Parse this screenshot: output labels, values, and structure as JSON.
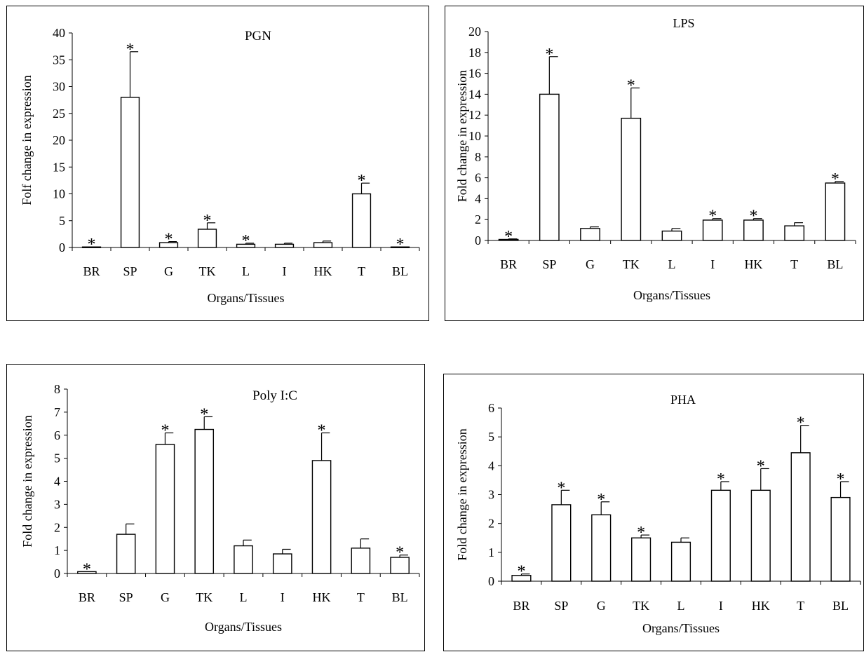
{
  "chart_data": [
    {
      "type": "bar",
      "title": "PGN",
      "xlabel": "Organs/Tissues",
      "ylabel": "Folf change in expression",
      "ylim": [
        0,
        40
      ],
      "yticks": [
        0,
        5,
        10,
        15,
        20,
        25,
        30,
        35,
        40
      ],
      "categories": [
        "BR",
        "SP",
        "G",
        "TK",
        "L",
        "I",
        "HK",
        "T",
        "BL"
      ],
      "values": [
        0.1,
        28,
        0.9,
        3.4,
        0.6,
        0.6,
        0.9,
        10,
        0.1
      ],
      "errors": [
        0,
        8.5,
        0.2,
        1.2,
        0.2,
        0.2,
        0.3,
        2.0,
        0
      ],
      "significant": [
        true,
        true,
        true,
        true,
        true,
        false,
        false,
        true,
        true
      ],
      "marker": "*",
      "legend": "none",
      "grid": false
    },
    {
      "type": "bar",
      "title": "LPS",
      "xlabel": "Organs/Tissues",
      "ylabel": "Fold change in expression",
      "ylim": [
        0,
        20
      ],
      "yticks": [
        0,
        2,
        4,
        6,
        8,
        10,
        12,
        14,
        16,
        18,
        20
      ],
      "categories": [
        "BR",
        "SP",
        "G",
        "TK",
        "L",
        "I",
        "HK",
        "T",
        "BL"
      ],
      "values": [
        0.1,
        14,
        1.15,
        11.7,
        0.9,
        1.95,
        1.95,
        1.4,
        5.5
      ],
      "errors": [
        0.05,
        3.6,
        0.15,
        2.9,
        0.25,
        0.15,
        0.15,
        0.3,
        0.15
      ],
      "significant": [
        true,
        true,
        false,
        true,
        false,
        true,
        true,
        false,
        true
      ],
      "marker": "*",
      "legend": "none",
      "grid": false
    },
    {
      "type": "bar",
      "title": "Poly I:C",
      "xlabel": "Organs/Tissues",
      "ylabel": "Fold change in expression",
      "ylim": [
        0,
        8
      ],
      "yticks": [
        0,
        1,
        2,
        3,
        4,
        5,
        6,
        7,
        8
      ],
      "categories": [
        "BR",
        "SP",
        "G",
        "TK",
        "L",
        "I",
        "HK",
        "T",
        "BL"
      ],
      "values": [
        0.08,
        1.7,
        5.6,
        6.25,
        1.2,
        0.85,
        4.9,
        1.1,
        0.7
      ],
      "errors": [
        0,
        0.45,
        0.5,
        0.55,
        0.25,
        0.2,
        1.2,
        0.4,
        0.1
      ],
      "significant": [
        true,
        false,
        true,
        true,
        false,
        false,
        true,
        false,
        true
      ],
      "marker": "*",
      "legend": "none",
      "grid": false
    },
    {
      "type": "bar",
      "title": "PHA",
      "xlabel": "Organs/Tissues",
      "ylabel": "Fold change in expression",
      "ylim": [
        0,
        6
      ],
      "yticks": [
        0,
        1,
        2,
        3,
        4,
        5,
        6
      ],
      "categories": [
        "BR",
        "SP",
        "G",
        "TK",
        "L",
        "I",
        "HK",
        "T",
        "BL"
      ],
      "values": [
        0.2,
        2.65,
        2.3,
        1.5,
        1.35,
        3.15,
        3.15,
        4.45,
        2.9
      ],
      "errors": [
        0.05,
        0.5,
        0.45,
        0.1,
        0.15,
        0.3,
        0.75,
        0.95,
        0.55
      ],
      "significant": [
        true,
        true,
        true,
        true,
        false,
        true,
        true,
        true,
        true
      ],
      "marker": "*",
      "legend": "none",
      "grid": false
    }
  ]
}
